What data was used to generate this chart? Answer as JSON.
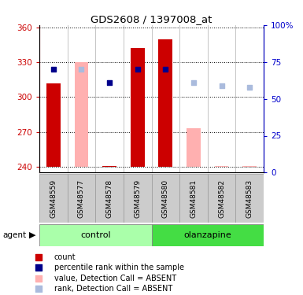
{
  "title": "GDS2608 / 1397008_at",
  "samples": [
    "GSM48559",
    "GSM48577",
    "GSM48578",
    "GSM48579",
    "GSM48580",
    "GSM48581",
    "GSM48582",
    "GSM48583"
  ],
  "ylim_left": [
    235,
    362
  ],
  "ylim_right": [
    0,
    100
  ],
  "yticks_left": [
    240,
    270,
    300,
    330,
    360
  ],
  "yticks_right": [
    0,
    25,
    50,
    75,
    100
  ],
  "bar_color_present": "#CC0000",
  "bar_color_absent": "#FFB0B0",
  "rank_color_present": "#00008B",
  "rank_color_absent": "#AABBDD",
  "bar_bottom": 240,
  "bar_data": {
    "GSM48559": {
      "value": 312,
      "rank": 66,
      "absent": false
    },
    "GSM48577": {
      "value": 330,
      "rank": 66,
      "absent": true
    },
    "GSM48578": {
      "value": 241,
      "rank": 57,
      "absent": false
    },
    "GSM48579": {
      "value": 342,
      "rank": 66,
      "absent": false
    },
    "GSM48580": {
      "value": 350,
      "rank": 66,
      "absent": false
    },
    "GSM48581": {
      "value": 273,
      "rank": 57,
      "absent": true
    },
    "GSM48582": {
      "value": 241,
      "rank": 55,
      "absent": true
    },
    "GSM48583": {
      "value": 241,
      "rank": 54,
      "absent": true
    }
  },
  "control_samples": [
    0,
    1,
    2,
    3
  ],
  "olanzapine_samples": [
    4,
    5,
    6,
    7
  ],
  "legend_items": [
    {
      "label": "count",
      "color": "#CC0000"
    },
    {
      "label": "percentile rank within the sample",
      "color": "#00008B"
    },
    {
      "label": "value, Detection Call = ABSENT",
      "color": "#FFB0B0"
    },
    {
      "label": "rank, Detection Call = ABSENT",
      "color": "#AABBDD"
    }
  ],
  "right_axis_color": "#0000CC",
  "left_axis_color": "#CC0000",
  "control_color_light": "#AAFFAA",
  "control_color_dark": "#44DD44",
  "olanzapine_color": "#44DD44",
  "sample_box_color": "#CCCCCC"
}
